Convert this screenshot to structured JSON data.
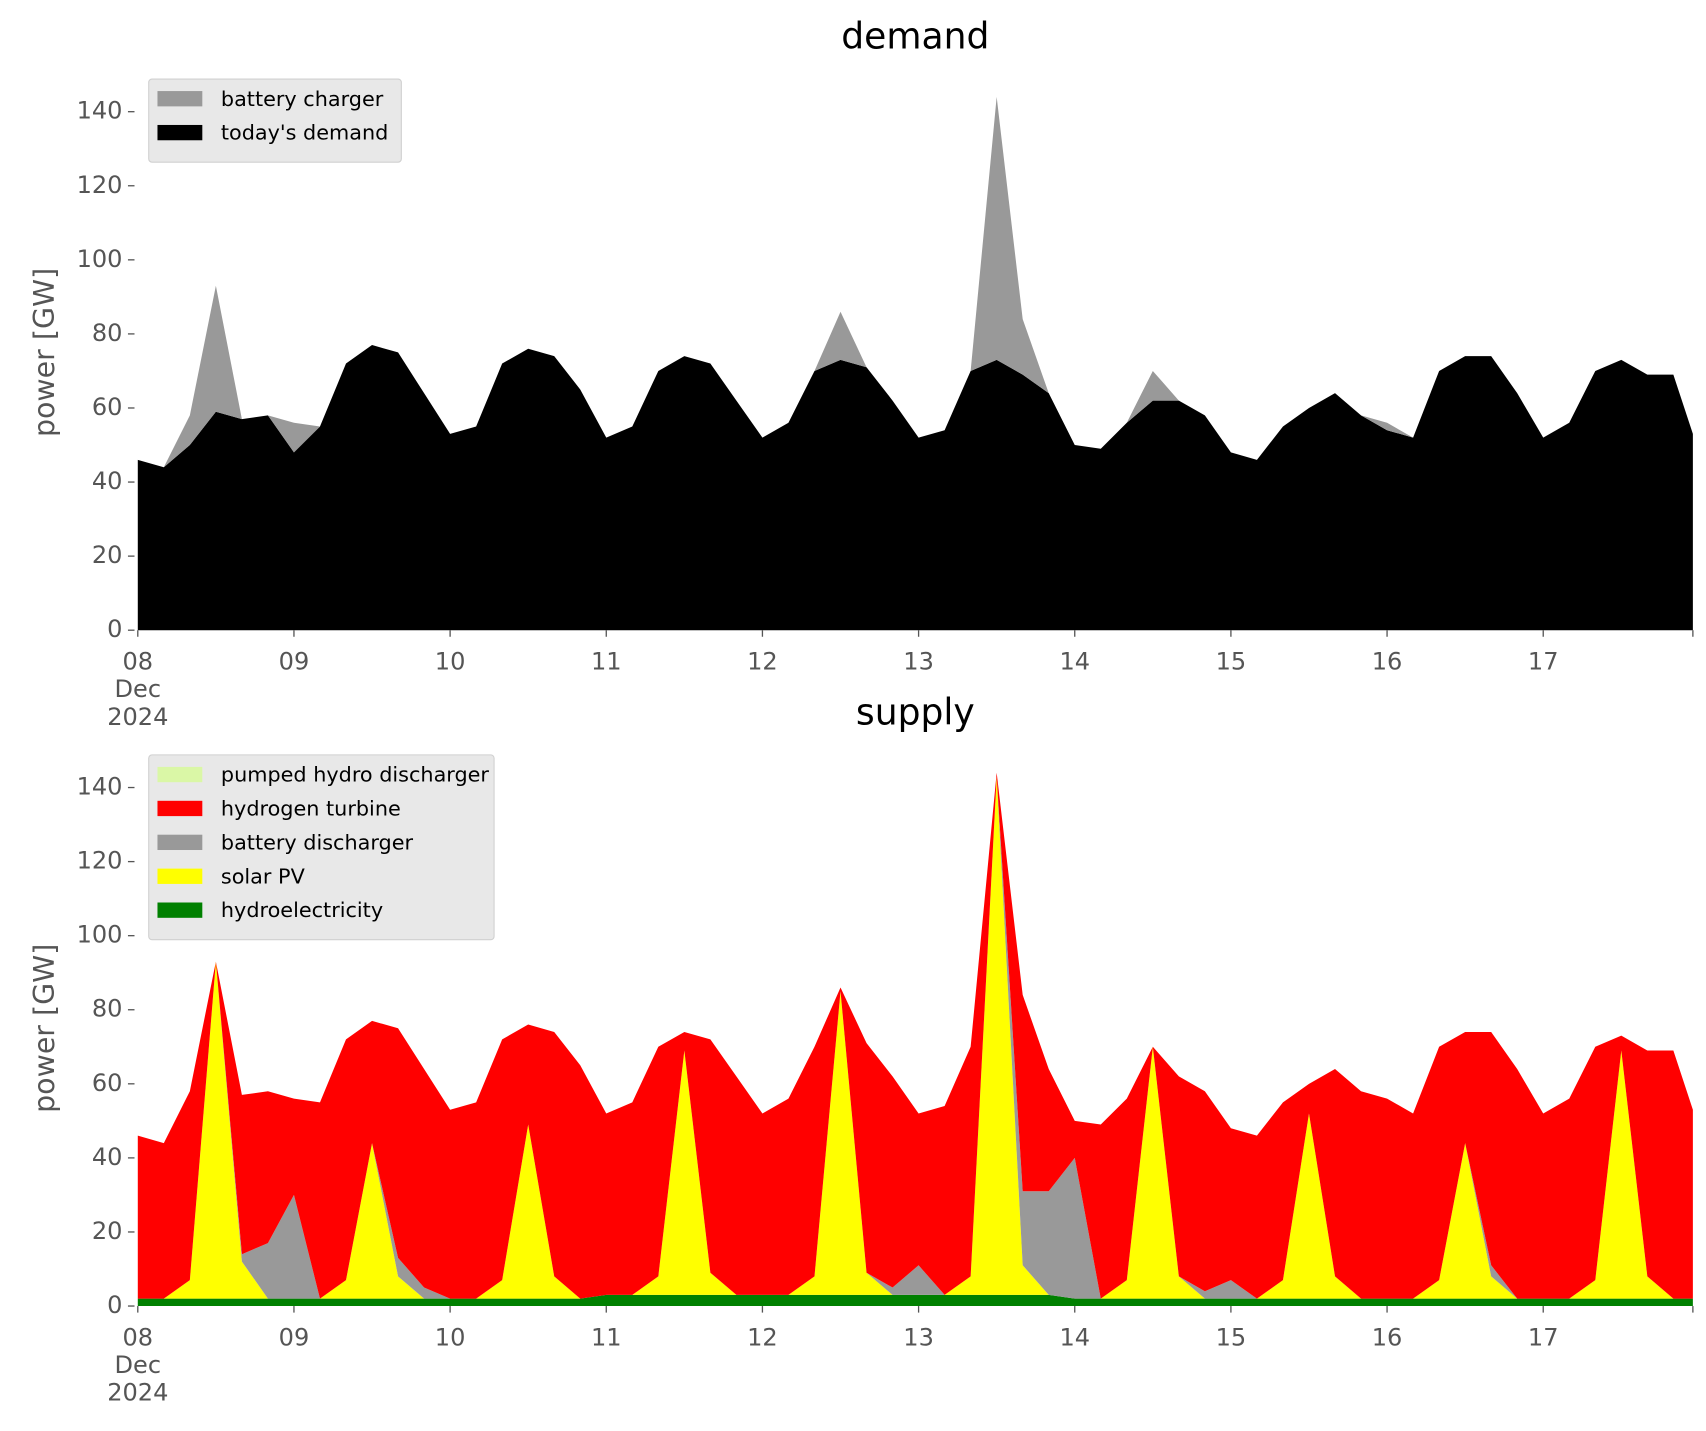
{
  "chart_data": [
    {
      "type": "stacked_area",
      "title": "demand",
      "ylabel": "power [GW]",
      "legend": "upper left",
      "grid": false,
      "x": [
        "2024-12-08T00:00",
        "2024-12-08T04:00",
        "2024-12-08T08:00",
        "2024-12-08T12:00",
        "2024-12-08T16:00",
        "2024-12-08T20:00",
        "2024-12-09T00:00",
        "2024-12-09T04:00",
        "2024-12-09T08:00",
        "2024-12-09T12:00",
        "2024-12-09T16:00",
        "2024-12-09T20:00",
        "2024-12-10T00:00",
        "2024-12-10T04:00",
        "2024-12-10T08:00",
        "2024-12-10T12:00",
        "2024-12-10T16:00",
        "2024-12-10T20:00",
        "2024-12-11T00:00",
        "2024-12-11T04:00",
        "2024-12-11T08:00",
        "2024-12-11T12:00",
        "2024-12-11T16:00",
        "2024-12-11T20:00",
        "2024-12-12T00:00",
        "2024-12-12T04:00",
        "2024-12-12T08:00",
        "2024-12-12T12:00",
        "2024-12-12T16:00",
        "2024-12-12T20:00",
        "2024-12-13T00:00",
        "2024-12-13T04:00",
        "2024-12-13T08:00",
        "2024-12-13T12:00",
        "2024-12-13T16:00",
        "2024-12-13T20:00",
        "2024-12-14T00:00",
        "2024-12-14T04:00",
        "2024-12-14T08:00",
        "2024-12-14T12:00",
        "2024-12-14T16:00",
        "2024-12-14T20:00",
        "2024-12-15T00:00",
        "2024-12-15T04:00",
        "2024-12-15T08:00",
        "2024-12-15T12:00",
        "2024-12-15T16:00",
        "2024-12-15T20:00",
        "2024-12-16T00:00",
        "2024-12-16T04:00",
        "2024-12-16T08:00",
        "2024-12-16T12:00",
        "2024-12-16T16:00",
        "2024-12-16T20:00",
        "2024-12-17T00:00",
        "2024-12-17T04:00",
        "2024-12-17T08:00",
        "2024-12-17T12:00",
        "2024-12-17T16:00",
        "2024-12-17T20:00",
        "2024-12-17T23:00"
      ],
      "series": [
        {
          "name": "today's demand",
          "color": "#000000",
          "values": [
            46,
            44,
            50,
            59,
            57,
            58,
            48,
            55,
            72,
            77,
            75,
            64,
            53,
            55,
            72,
            76,
            74,
            65,
            52,
            55,
            70,
            74,
            72,
            62,
            52,
            56,
            70,
            73,
            71,
            62,
            52,
            54,
            70,
            73,
            69,
            64,
            50,
            49,
            56,
            62,
            62,
            58,
            48,
            46,
            55,
            60,
            64,
            58,
            54,
            52,
            70,
            74,
            74,
            64,
            52,
            56,
            70,
            73,
            69,
            69,
            53
          ]
        },
        {
          "name": "battery charger",
          "color": "#999999",
          "values": [
            0,
            0,
            8,
            34,
            0,
            0,
            8,
            0,
            0,
            0,
            0,
            0,
            0,
            0,
            0,
            0,
            0,
            0,
            0,
            0,
            0,
            0,
            0,
            0,
            0,
            0,
            0,
            13,
            0,
            0,
            0,
            0,
            0,
            71,
            15,
            0,
            0,
            0,
            0,
            8,
            0,
            0,
            0,
            0,
            0,
            0,
            0,
            0,
            2,
            0,
            0,
            0,
            0,
            0,
            0,
            0,
            0,
            0,
            0,
            0,
            0
          ]
        }
      ],
      "xlim": [
        "2024-12-08T00:00",
        "2024-12-17T23:00"
      ],
      "xticks": [
        {
          "value": "2024-12-08T00:00",
          "label": "08\nDec\n2024"
        },
        {
          "value": "2024-12-09T00:00",
          "label": "09"
        },
        {
          "value": "2024-12-10T00:00",
          "label": "10"
        },
        {
          "value": "2024-12-11T00:00",
          "label": "11"
        },
        {
          "value": "2024-12-12T00:00",
          "label": "12"
        },
        {
          "value": "2024-12-13T00:00",
          "label": "13"
        },
        {
          "value": "2024-12-14T00:00",
          "label": "14"
        },
        {
          "value": "2024-12-15T00:00",
          "label": "15"
        },
        {
          "value": "2024-12-16T00:00",
          "label": "16"
        },
        {
          "value": "2024-12-17T00:00",
          "label": "17"
        }
      ],
      "ylim": [
        0,
        150
      ],
      "yticks": [
        0,
        20,
        40,
        60,
        80,
        100,
        120,
        140
      ]
    },
    {
      "type": "stacked_area",
      "title": "supply",
      "ylabel": "power [GW]",
      "legend": "upper left",
      "grid": false,
      "x": [
        "2024-12-08T00:00",
        "2024-12-08T04:00",
        "2024-12-08T08:00",
        "2024-12-08T12:00",
        "2024-12-08T16:00",
        "2024-12-08T20:00",
        "2024-12-09T00:00",
        "2024-12-09T04:00",
        "2024-12-09T08:00",
        "2024-12-09T12:00",
        "2024-12-09T16:00",
        "2024-12-09T20:00",
        "2024-12-10T00:00",
        "2024-12-10T04:00",
        "2024-12-10T08:00",
        "2024-12-10T12:00",
        "2024-12-10T16:00",
        "2024-12-10T20:00",
        "2024-12-11T00:00",
        "2024-12-11T04:00",
        "2024-12-11T08:00",
        "2024-12-11T12:00",
        "2024-12-11T16:00",
        "2024-12-11T20:00",
        "2024-12-12T00:00",
        "2024-12-12T04:00",
        "2024-12-12T08:00",
        "2024-12-12T12:00",
        "2024-12-12T16:00",
        "2024-12-12T20:00",
        "2024-12-13T00:00",
        "2024-12-13T04:00",
        "2024-12-13T08:00",
        "2024-12-13T12:00",
        "2024-12-13T16:00",
        "2024-12-13T20:00",
        "2024-12-14T00:00",
        "2024-12-14T04:00",
        "2024-12-14T08:00",
        "2024-12-14T12:00",
        "2024-12-14T16:00",
        "2024-12-14T20:00",
        "2024-12-15T00:00",
        "2024-12-15T04:00",
        "2024-12-15T08:00",
        "2024-12-15T12:00",
        "2024-12-15T16:00",
        "2024-12-15T20:00",
        "2024-12-16T00:00",
        "2024-12-16T04:00",
        "2024-12-16T08:00",
        "2024-12-16T12:00",
        "2024-12-16T16:00",
        "2024-12-16T20:00",
        "2024-12-17T00:00",
        "2024-12-17T04:00",
        "2024-12-17T08:00",
        "2024-12-17T12:00",
        "2024-12-17T16:00",
        "2024-12-17T20:00",
        "2024-12-17T23:00"
      ],
      "series": [
        {
          "name": "hydroelectricity",
          "color": "#008000",
          "values": [
            2,
            2,
            2,
            2,
            2,
            2,
            2,
            2,
            2,
            2,
            2,
            2,
            2,
            2,
            2,
            2,
            2,
            2,
            3,
            3,
            3,
            3,
            3,
            3,
            3,
            3,
            3,
            3,
            3,
            3,
            3,
            3,
            3,
            3,
            3,
            3,
            2,
            2,
            2,
            2,
            2,
            2,
            2,
            2,
            2,
            2,
            2,
            2,
            2,
            2,
            2,
            2,
            2,
            2,
            2,
            2,
            2,
            2,
            2,
            2,
            2
          ]
        },
        {
          "name": "solar PV",
          "color": "#ffff00",
          "values": [
            0,
            0,
            5,
            91,
            10,
            0,
            0,
            0,
            5,
            42,
            6,
            0,
            0,
            0,
            5,
            47,
            6,
            0,
            0,
            0,
            5,
            66,
            6,
            0,
            0,
            0,
            5,
            82,
            6,
            0,
            0,
            0,
            5,
            140,
            8,
            0,
            0,
            0,
            5,
            68,
            6,
            0,
            0,
            0,
            5,
            50,
            6,
            0,
            0,
            0,
            5,
            42,
            6,
            0,
            0,
            0,
            5,
            67,
            6,
            0,
            0
          ]
        },
        {
          "name": "battery discharger",
          "color": "#999999",
          "values": [
            0,
            0,
            0,
            0,
            2,
            15,
            28,
            0,
            0,
            0,
            5,
            3,
            0,
            0,
            0,
            0,
            0,
            0,
            0,
            0,
            0,
            0,
            0,
            0,
            0,
            0,
            0,
            0,
            0,
            2,
            8,
            0,
            0,
            0,
            20,
            28,
            38,
            0,
            0,
            0,
            0,
            2,
            5,
            0,
            0,
            0,
            0,
            0,
            0,
            0,
            0,
            0,
            3,
            0,
            0,
            0,
            0,
            0,
            0,
            0,
            0
          ]
        },
        {
          "name": "hydrogen turbine",
          "color": "#ff0000",
          "values": [
            44,
            42,
            51,
            0,
            43,
            41,
            26,
            53,
            65,
            33,
            62,
            59,
            51,
            53,
            65,
            27,
            66,
            63,
            49,
            52,
            62,
            5,
            63,
            59,
            49,
            53,
            62,
            1,
            62,
            57,
            41,
            51,
            62,
            1,
            53,
            33,
            10,
            47,
            49,
            0,
            54,
            54,
            41,
            44,
            48,
            8,
            56,
            56,
            54,
            50,
            63,
            30,
            63,
            62,
            50,
            54,
            63,
            4,
            61,
            67,
            51
          ]
        },
        {
          "name": "pumped hydro discharger",
          "color": "#daf7a6",
          "values": [
            0,
            0,
            0,
            0,
            0,
            0,
            0,
            0,
            0,
            0,
            0,
            0,
            0,
            0,
            0,
            0,
            0,
            0,
            0,
            0,
            0,
            0,
            0,
            0,
            0,
            0,
            0,
            0,
            0,
            0,
            0,
            0,
            0,
            0,
            0,
            0,
            0,
            0,
            0,
            0,
            0,
            0,
            0,
            0,
            0,
            0,
            0,
            0,
            0,
            0,
            0,
            0,
            0,
            0,
            0,
            0,
            0,
            0,
            0,
            0,
            0
          ]
        }
      ],
      "xlim": [
        "2024-12-08T00:00",
        "2024-12-17T23:00"
      ],
      "xticks": [
        {
          "value": "2024-12-08T00:00",
          "label": "08\nDec\n2024"
        },
        {
          "value": "2024-12-09T00:00",
          "label": "09"
        },
        {
          "value": "2024-12-10T00:00",
          "label": "10"
        },
        {
          "value": "2024-12-11T00:00",
          "label": "11"
        },
        {
          "value": "2024-12-12T00:00",
          "label": "12"
        },
        {
          "value": "2024-12-13T00:00",
          "label": "13"
        },
        {
          "value": "2024-12-14T00:00",
          "label": "14"
        },
        {
          "value": "2024-12-15T00:00",
          "label": "15"
        },
        {
          "value": "2024-12-16T00:00",
          "label": "16"
        },
        {
          "value": "2024-12-17T00:00",
          "label": "17"
        }
      ],
      "ylim": [
        0,
        150
      ],
      "yticks": [
        0,
        20,
        40,
        60,
        80,
        100,
        120,
        140
      ]
    }
  ]
}
